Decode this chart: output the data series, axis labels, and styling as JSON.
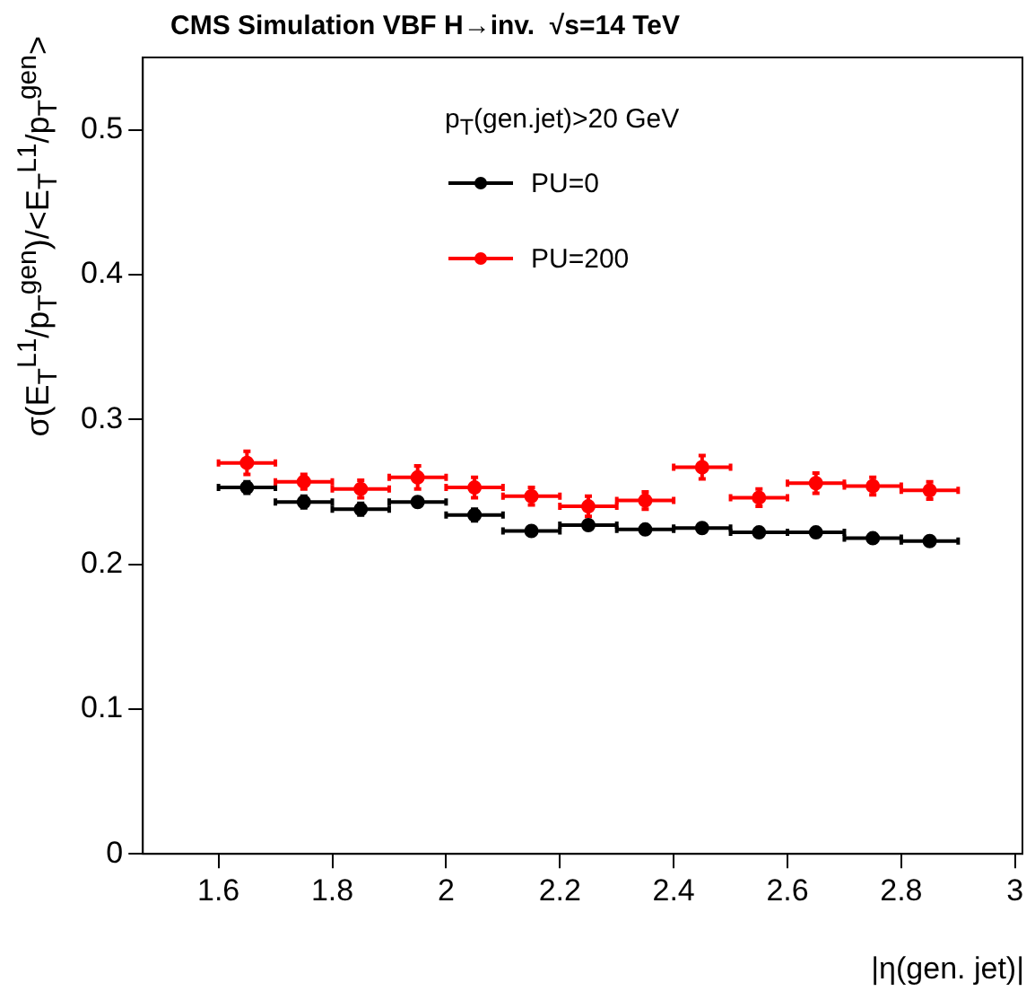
{
  "chart_data": {
    "type": "scatter",
    "title": "CMS Simulation VBF H→inv.  √s=14 TeV",
    "xlabel": "|η(gen. jet)|",
    "ylabel": "σ(E$_{T}$$^{L1}$/p$_{T}$$^{gen}$)/<E$_{T}$$^{L1}$/p$_{T}$$^{gen}$>",
    "legend_title": "p$_{T}$(gen.jet)>20 GeV",
    "x": [
      1.65,
      1.75,
      1.85,
      1.95,
      2.05,
      2.15,
      2.25,
      2.35,
      2.45,
      2.55,
      2.65,
      2.75,
      2.85
    ],
    "series": [
      {
        "name": "PU=0",
        "color": "#000000",
        "values": [
          0.253,
          0.243,
          0.238,
          0.243,
          0.234,
          0.223,
          0.227,
          0.224,
          0.225,
          0.222,
          0.222,
          0.218,
          0.216
        ],
        "errors": [
          0.004,
          0.004,
          0.004,
          null,
          0.004,
          null,
          null,
          null,
          null,
          null,
          null,
          null,
          null
        ],
        "xerrors": [
          0.05,
          0.05,
          0.05,
          0.05,
          0.05,
          0.05,
          0.05,
          0.05,
          0.05,
          0.05,
          0.05,
          0.05,
          0.05
        ]
      },
      {
        "name": "PU=200",
        "color": "#ff0000",
        "values": [
          0.27,
          0.257,
          0.252,
          0.26,
          0.253,
          0.247,
          0.24,
          0.244,
          0.267,
          0.246,
          0.256,
          0.254,
          0.251
        ],
        "errors": [
          0.008,
          0.005,
          0.006,
          0.008,
          0.007,
          0.006,
          0.007,
          0.006,
          0.008,
          0.006,
          0.007,
          0.006,
          0.006
        ],
        "xerrors": [
          0.05,
          0.05,
          0.05,
          0.05,
          0.05,
          0.05,
          0.05,
          0.05,
          0.05,
          0.05,
          0.05,
          0.05,
          0.05
        ]
      }
    ],
    "xlim": [
      1.467,
      3.013
    ],
    "xticks": [
      1.6,
      1.8,
      2,
      2.2,
      2.4,
      2.6,
      2.8,
      3
    ],
    "ylim": [
      0,
      0.55
    ],
    "yticks": [
      0,
      0.1,
      0.2,
      0.3,
      0.4,
      0.5
    ],
    "grid": false,
    "legend": "top",
    "marker": "circle"
  }
}
